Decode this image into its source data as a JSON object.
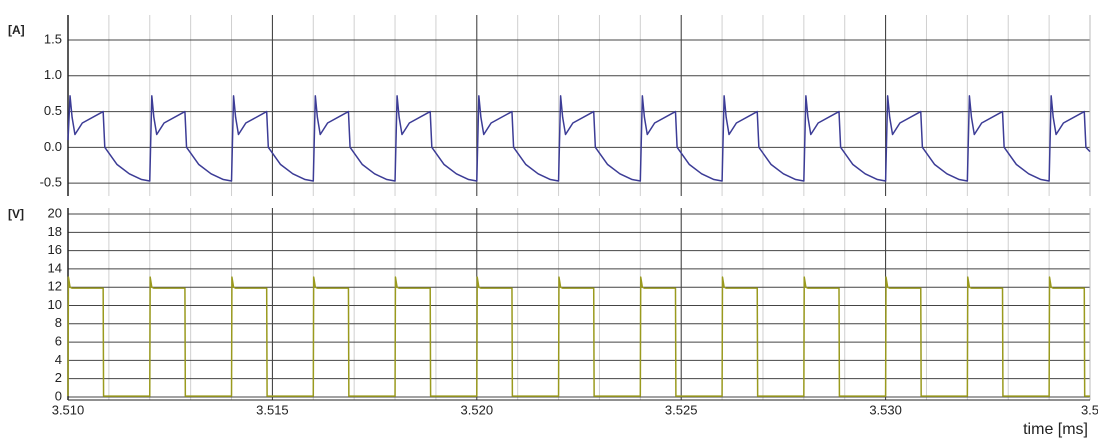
{
  "chart_data": [
    {
      "type": "line",
      "ylabel": "[A]",
      "color": "#3c3c96",
      "xlim": [
        3.51,
        3.535
      ],
      "ylim": [
        -0.68,
        1.85
      ],
      "yticks": [
        1.5,
        {
          "value": 1,
          "label": "1.0"
        },
        0.5,
        {
          "value": 0,
          "label": "0.0"
        },
        -0.5
      ],
      "grid": true,
      "x": [
        3.51,
        3.51005,
        3.5101,
        3.51017,
        3.51035,
        3.51086,
        3.5109,
        3.5112,
        3.5115,
        3.5118,
        3.512,
        3.51205,
        3.5121,
        3.51217,
        3.51235,
        3.51286,
        3.5129,
        3.5132,
        3.5135,
        3.5138,
        3.514,
        3.51405,
        3.5141,
        3.51417,
        3.51435,
        3.51486,
        3.5149,
        3.5152,
        3.5155,
        3.5158,
        3.516,
        3.51605,
        3.5161,
        3.51617,
        3.51635,
        3.51686,
        3.5169,
        3.5172,
        3.5175,
        3.5178,
        3.518,
        3.51805,
        3.5181,
        3.51817,
        3.51835,
        3.51886,
        3.5189,
        3.5192,
        3.5195,
        3.5198,
        3.52,
        3.52005,
        3.5201,
        3.52017,
        3.52035,
        3.52086,
        3.5209,
        3.5212,
        3.5215,
        3.5218,
        3.522,
        3.52205,
        3.5221,
        3.52217,
        3.52235,
        3.52286,
        3.5229,
        3.5232,
        3.5235,
        3.5238,
        3.524,
        3.52405,
        3.5241,
        3.52417,
        3.52435,
        3.52486,
        3.5249,
        3.5252,
        3.5255,
        3.5258,
        3.526,
        3.52605,
        3.5261,
        3.52617,
        3.52635,
        3.52686,
        3.5269,
        3.5272,
        3.5275,
        3.5278,
        3.528,
        3.52805,
        3.5281,
        3.52817,
        3.52835,
        3.52886,
        3.5289,
        3.5292,
        3.5295,
        3.5298,
        3.53,
        3.53005,
        3.5301,
        3.53017,
        3.53035,
        3.53086,
        3.5309,
        3.5312,
        3.5315,
        3.5318,
        3.532,
        3.53205,
        3.5321,
        3.53217,
        3.53235,
        3.53286,
        3.5329,
        3.5332,
        3.5335,
        3.5338,
        3.534,
        3.53405,
        3.5341,
        3.53417,
        3.53435,
        3.53486,
        3.5349,
        3.535
      ],
      "values": [
        0.1,
        0.72,
        0.42,
        0.18,
        0.34,
        0.5,
        0,
        -0.24,
        -0.37,
        -0.45,
        -0.47,
        0.72,
        0.42,
        0.18,
        0.34,
        0.5,
        0,
        -0.24,
        -0.37,
        -0.45,
        -0.47,
        0.72,
        0.42,
        0.18,
        0.34,
        0.5,
        0,
        -0.24,
        -0.37,
        -0.45,
        -0.47,
        0.72,
        0.42,
        0.18,
        0.34,
        0.5,
        0,
        -0.24,
        -0.37,
        -0.45,
        -0.47,
        0.72,
        0.42,
        0.18,
        0.34,
        0.5,
        0,
        -0.24,
        -0.37,
        -0.45,
        -0.47,
        0.72,
        0.42,
        0.18,
        0.34,
        0.5,
        0,
        -0.24,
        -0.37,
        -0.45,
        -0.47,
        0.72,
        0.42,
        0.18,
        0.34,
        0.5,
        0,
        -0.24,
        -0.37,
        -0.45,
        -0.47,
        0.72,
        0.42,
        0.18,
        0.34,
        0.5,
        0,
        -0.24,
        -0.37,
        -0.45,
        -0.47,
        0.72,
        0.42,
        0.18,
        0.34,
        0.5,
        0,
        -0.24,
        -0.37,
        -0.45,
        -0.47,
        0.72,
        0.42,
        0.18,
        0.34,
        0.5,
        0,
        -0.24,
        -0.37,
        -0.45,
        -0.47,
        0.72,
        0.42,
        0.18,
        0.34,
        0.5,
        0,
        -0.24,
        -0.37,
        -0.45,
        -0.47,
        0.72,
        0.42,
        0.18,
        0.34,
        0.5,
        0,
        -0.24,
        -0.37,
        -0.45,
        -0.47,
        0.72,
        0.42,
        0.18,
        0.34,
        0.5,
        0,
        -0.06
      ]
    },
    {
      "type": "line",
      "ylabel": "[V]",
      "xlabel": "time [ms]",
      "color": "#9a9a1e",
      "xlim": [
        3.51,
        3.535
      ],
      "ylim": [
        -0.33,
        20.66
      ],
      "xticks": [
        {
          "value": 3.51,
          "label": "3.510"
        },
        {
          "value": 3.515,
          "label": "3.515"
        },
        {
          "value": 3.52,
          "label": "3.520"
        },
        {
          "value": 3.525,
          "label": "3.525"
        },
        {
          "value": 3.53,
          "label": "3.530"
        },
        {
          "value": 3.535,
          "label": "3.5"
        }
      ],
      "xminorticks": [
        3.511,
        3.512,
        3.513,
        3.514,
        3.516,
        3.517,
        3.518,
        3.519,
        3.521,
        3.522,
        3.523,
        3.524,
        3.526,
        3.527,
        3.528,
        3.529,
        3.531,
        3.532,
        3.533,
        3.534
      ],
      "yticks": [
        0,
        2,
        4,
        6,
        8,
        10,
        12,
        14,
        16,
        18,
        20
      ],
      "grid": true,
      "x": [
        3.51,
        3.51001,
        3.51005,
        3.5101,
        3.51086,
        3.51087,
        3.512,
        3.51201,
        3.51205,
        3.5121,
        3.51286,
        3.51287,
        3.514,
        3.51401,
        3.51405,
        3.5141,
        3.51486,
        3.51487,
        3.516,
        3.51601,
        3.51605,
        3.5161,
        3.51686,
        3.51687,
        3.518,
        3.51801,
        3.51805,
        3.5181,
        3.51886,
        3.51887,
        3.52,
        3.52001,
        3.52005,
        3.5201,
        3.52086,
        3.52087,
        3.522,
        3.52201,
        3.52205,
        3.5221,
        3.52286,
        3.52287,
        3.524,
        3.52401,
        3.52405,
        3.5241,
        3.52486,
        3.52487,
        3.526,
        3.52601,
        3.52605,
        3.5261,
        3.52686,
        3.52687,
        3.528,
        3.52801,
        3.52805,
        3.5281,
        3.52886,
        3.52887,
        3.53,
        3.53001,
        3.53005,
        3.5301,
        3.53086,
        3.53087,
        3.532,
        3.53201,
        3.53205,
        3.5321,
        3.53286,
        3.53287,
        3.534,
        3.53401,
        3.53405,
        3.5341,
        3.53486,
        3.53487,
        3.535
      ],
      "values": [
        0.1,
        13.1,
        12,
        11.9,
        11.9,
        0.1,
        0.1,
        13.1,
        12,
        11.9,
        11.9,
        0.1,
        0.1,
        13.1,
        12,
        11.9,
        11.9,
        0.1,
        0.1,
        13.1,
        12,
        11.9,
        11.9,
        0.1,
        0.1,
        13.1,
        12,
        11.9,
        11.9,
        0.1,
        0.1,
        13.1,
        12,
        11.9,
        11.9,
        0.1,
        0.1,
        13.1,
        12,
        11.9,
        11.9,
        0.1,
        0.1,
        13.1,
        12,
        11.9,
        11.9,
        0.1,
        0.1,
        13.1,
        12,
        11.9,
        11.9,
        0.1,
        0.1,
        13.1,
        12,
        11.9,
        11.9,
        0.1,
        0.1,
        13.1,
        12,
        11.9,
        11.9,
        0.1,
        0.1,
        13.1,
        12,
        11.9,
        11.9,
        0.1,
        0.1,
        13.1,
        12,
        11.9,
        11.9,
        0.1,
        0.1
      ]
    }
  ]
}
